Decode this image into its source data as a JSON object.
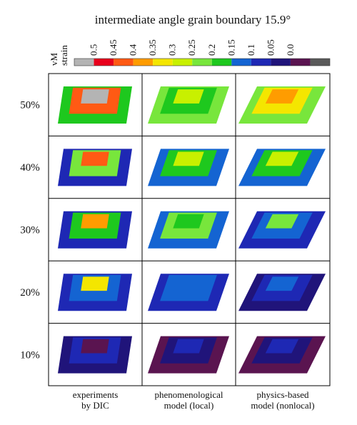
{
  "title": "intermediate angle grain boundary 15.9°",
  "colorbar": {
    "label": [
      "vM",
      "strain"
    ],
    "ticks": [
      "0.5",
      "0.45",
      "0.4",
      "0.35",
      "0.3",
      "0.25",
      "0.2",
      "0.15",
      "0.1",
      "0.05",
      "0.0"
    ]
  },
  "rows": [
    "50%",
    "40%",
    "30%",
    "20%",
    "10%"
  ],
  "columns": [
    [
      "experiments",
      "by DIC"
    ],
    [
      "phenomenological",
      "model (local)"
    ],
    [
      "physics-based",
      "model (nonlocal)"
    ]
  ]
}
